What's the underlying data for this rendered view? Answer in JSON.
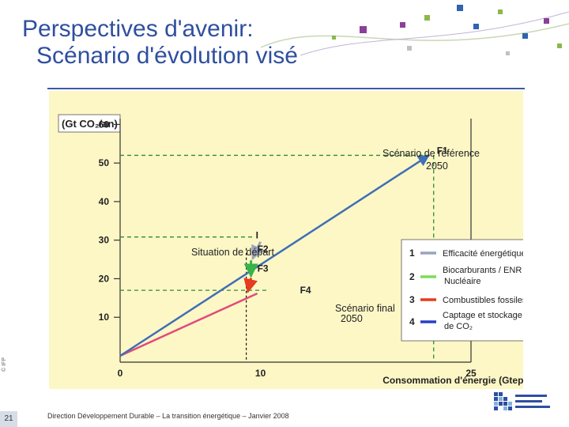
{
  "slide": {
    "title_line1": "Perspectives d'avenir:",
    "title_line2": "Scénario d'évolution visé",
    "page_number": "21",
    "footer": "Direction Développement Durable – La transition énergétique – Janvier 2008",
    "copyright": "© IFP"
  },
  "chart_data": {
    "type": "line",
    "ylabel": "(Gt CO₂/an)",
    "xlabel": "Consommation d'énergie (Gtep/an)",
    "xlim": [
      0,
      25
    ],
    "ylim": [
      0,
      60
    ],
    "y_ticks": [
      "60",
      "50",
      "40",
      "30",
      "20",
      "10"
    ],
    "x_ticks": [
      "0",
      "10",
      "25"
    ],
    "points": {
      "origin": {
        "x": 0,
        "y": 0
      },
      "I": {
        "label": "I",
        "x": 10,
        "y": 30
      },
      "F1": {
        "label": "F1",
        "x": 22,
        "y": 52
      },
      "F2": {
        "label": "F2",
        "x": 10,
        "y": 26
      },
      "F3": {
        "label": "F3",
        "x": 10,
        "y": 21
      },
      "F4": {
        "label": "F4",
        "x": 10,
        "y": 17
      }
    },
    "annotations": {
      "reference": "Scénario de référence",
      "reference_year": "2050",
      "start": "Situation de départ",
      "final": "Scénario final",
      "final_year": "2050"
    },
    "legend": [
      {
        "num": "1",
        "label": "Efficacité énergétique",
        "color": "#9aa4bc"
      },
      {
        "num": "2",
        "label": "Biocarburants / ENR",
        "label2": "Nucléaire",
        "color": "#7ddc5a"
      },
      {
        "num": "3",
        "label": "Combustibles fossiles",
        "color": "#e53b1f"
      },
      {
        "num": "4",
        "label": "Captage et stockage",
        "label2": "de CO₂",
        "color": "#2a3ec6"
      }
    ],
    "colors": {
      "baseline": "#e24a7a",
      "guide": "#2e8b3a",
      "reference_line": "#3f6fb5"
    }
  }
}
